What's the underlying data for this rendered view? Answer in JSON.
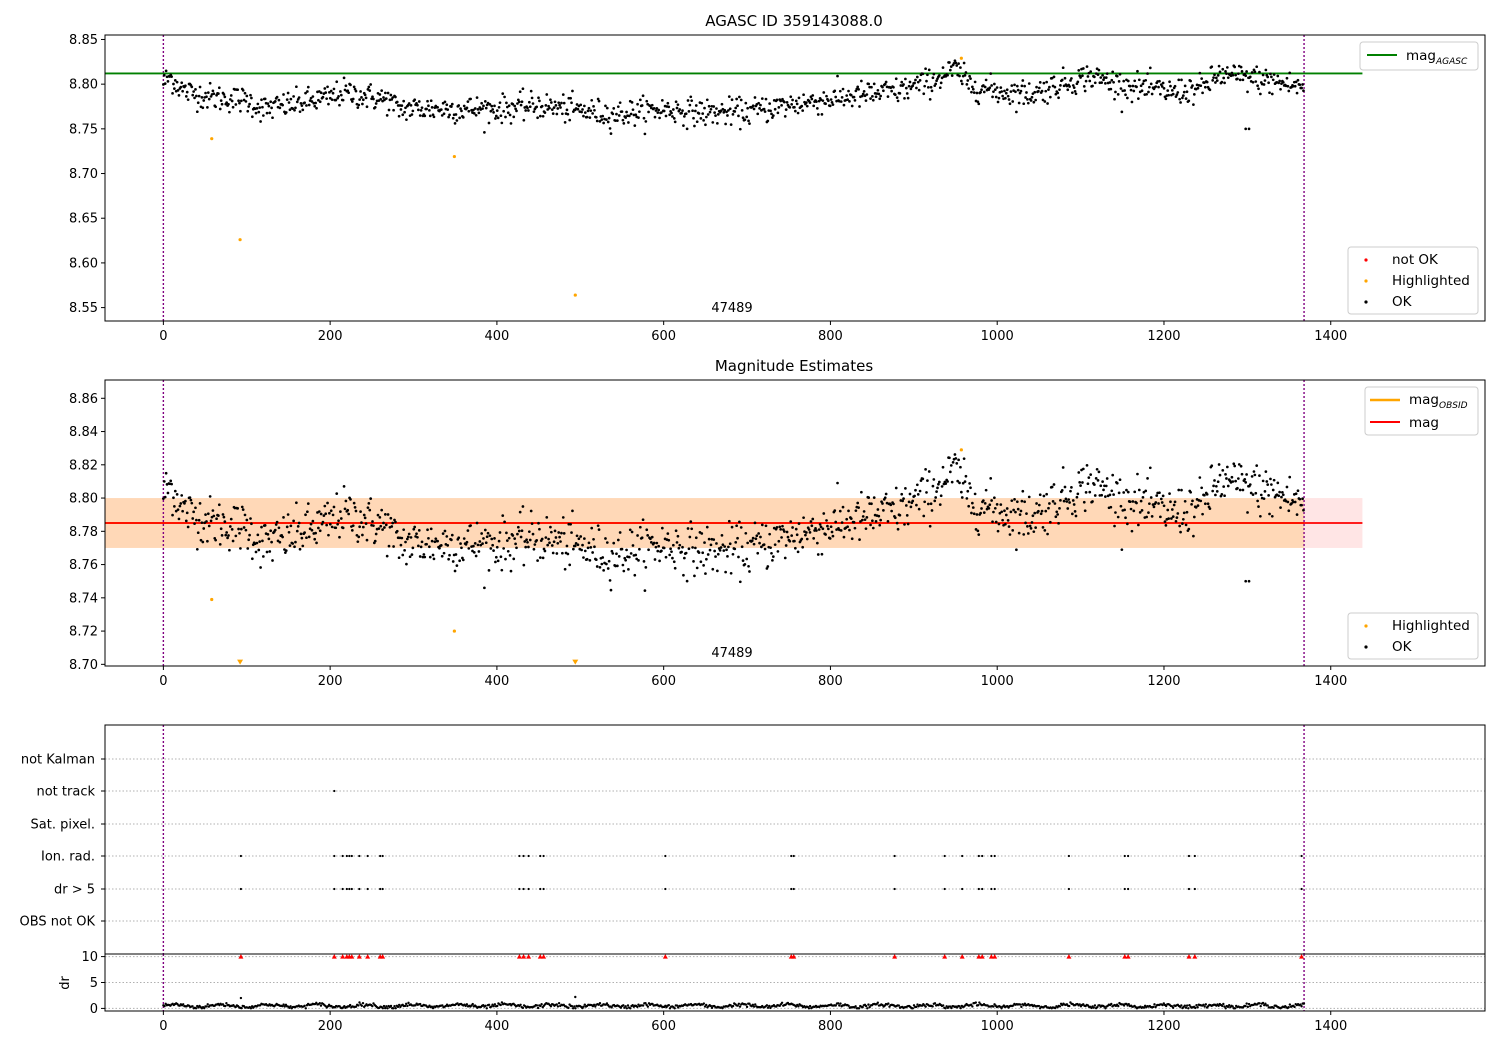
{
  "chart_data": [
    {
      "id": "agasc",
      "type": "scatter",
      "title": "AGASC ID 359143088.0",
      "xlim": [
        -70,
        1585
      ],
      "ylim": [
        8.535,
        8.855
      ],
      "xticks": [
        0,
        200,
        400,
        600,
        800,
        1000,
        1200,
        1400
      ],
      "yticks": [
        8.55,
        8.6,
        8.65,
        8.7,
        8.75,
        8.8,
        8.85
      ],
      "ytick_labels": [
        "8.55",
        "8.60",
        "8.65",
        "8.70",
        "8.75",
        "8.80",
        "8.85"
      ],
      "vlines": [
        0,
        1368
      ],
      "obsid_label": "47489",
      "mag_agasc": {
        "value": 8.812,
        "x_range": [
          -70,
          1438
        ]
      },
      "legend_top": [
        "mag_AGASC"
      ],
      "legend_bottom": [
        "not OK",
        "Highlighted",
        "OK"
      ],
      "highlighted": [
        {
          "x": 58,
          "y": 8.739
        },
        {
          "x": 92,
          "y": 8.626
        },
        {
          "x": 349,
          "y": 8.719
        },
        {
          "x": 494,
          "y": 8.564
        },
        {
          "x": 957,
          "y": 8.829
        }
      ],
      "ok_trend": [
        [
          0,
          8.802
        ],
        [
          8,
          8.808
        ],
        [
          25,
          8.792
        ],
        [
          60,
          8.785
        ],
        [
          100,
          8.782
        ],
        [
          120,
          8.772
        ],
        [
          200,
          8.785
        ],
        [
          215,
          8.791
        ],
        [
          270,
          8.782
        ],
        [
          280,
          8.773
        ],
        [
          400,
          8.772
        ],
        [
          450,
          8.776
        ],
        [
          540,
          8.766
        ],
        [
          600,
          8.772
        ],
        [
          650,
          8.768
        ],
        [
          700,
          8.769
        ],
        [
          760,
          8.778
        ],
        [
          820,
          8.786
        ],
        [
          880,
          8.792
        ],
        [
          920,
          8.803
        ],
        [
          950,
          8.817
        ],
        [
          965,
          8.8
        ],
        [
          1000,
          8.792
        ],
        [
          1040,
          8.789
        ],
        [
          1070,
          8.798
        ],
        [
          1110,
          8.809
        ],
        [
          1150,
          8.799
        ],
        [
          1210,
          8.791
        ],
        [
          1245,
          8.795
        ],
        [
          1265,
          8.81
        ],
        [
          1300,
          8.807
        ],
        [
          1368,
          8.797
        ]
      ],
      "ok_outliers": [
        {
          "x": 1298,
          "y": 8.75
        },
        {
          "x": 1302,
          "y": 8.75
        }
      ]
    },
    {
      "id": "estimates",
      "type": "scatter",
      "title": "Magnitude Estimates",
      "xlim": [
        -70,
        1585
      ],
      "ylim": [
        8.699,
        8.871
      ],
      "xticks": [
        0,
        200,
        400,
        600,
        800,
        1000,
        1200,
        1400
      ],
      "yticks": [
        8.7,
        8.72,
        8.74,
        8.76,
        8.78,
        8.8,
        8.82,
        8.84,
        8.86
      ],
      "ytick_labels": [
        "8.70",
        "8.72",
        "8.74",
        "8.76",
        "8.78",
        "8.80",
        "8.82",
        "8.84",
        "8.86"
      ],
      "vlines": [
        0,
        1368
      ],
      "obsid_label": "47489",
      "mag": {
        "value": 8.785,
        "band": [
          8.77,
          8.8
        ],
        "x_range": [
          -70,
          1438
        ]
      },
      "mag_obsid": {
        "value": 8.785,
        "band": [
          8.77,
          8.8
        ],
        "x_range": [
          -70,
          1368
        ]
      },
      "legend_top": [
        "mag_OBSID",
        "mag"
      ],
      "legend_bottom": [
        "Highlighted",
        "OK"
      ],
      "highlighted": [
        {
          "x": 58,
          "y": 8.739
        },
        {
          "x": 92,
          "y": 8.701
        },
        {
          "x": 349,
          "y": 8.72
        },
        {
          "x": 494,
          "y": 8.701
        },
        {
          "x": 957,
          "y": 8.829
        }
      ],
      "ok_outliers": [
        {
          "x": 1298,
          "y": 8.75
        },
        {
          "x": 1302,
          "y": 8.75
        }
      ]
    },
    {
      "id": "flags",
      "type": "scatter",
      "xlim": [
        -70,
        1585
      ],
      "xticks": [
        0,
        200,
        400,
        600,
        800,
        1000,
        1200,
        1400
      ],
      "vlines": [
        0,
        1368
      ],
      "flag_rows": [
        "not Kalman",
        "not track",
        "Sat. pixel.",
        "Ion. rad.",
        "dr > 5",
        "OBS not OK"
      ],
      "not_track_x": [
        205
      ],
      "flagged_x": [
        93,
        205,
        215,
        220,
        223,
        226,
        235,
        245,
        260,
        263,
        427,
        432,
        438,
        452,
        456,
        602,
        753,
        756,
        877,
        937,
        958,
        978,
        982,
        993,
        997,
        1086,
        1153,
        1157,
        1230,
        1237,
        1365
      ]
    },
    {
      "id": "dr",
      "type": "scatter",
      "ylabel": "dr",
      "xlim": [
        -70,
        1585
      ],
      "ylim": [
        -0.5,
        10.5
      ],
      "xticks": [
        0,
        200,
        400,
        600,
        800,
        1000,
        1200,
        1400
      ],
      "xtick_labels": [
        "0",
        "200",
        "400",
        "600",
        "800",
        "1000",
        "1200",
        "1400"
      ],
      "yticks": [
        0,
        5,
        10
      ],
      "ytick_labels": [
        "0",
        "5",
        "10"
      ],
      "vlines": [
        0,
        1368
      ],
      "clipped_marker_y": 10,
      "points_sample": [
        {
          "x": 93,
          "y": 2.0
        },
        {
          "x": 494,
          "y": 2.2
        }
      ],
      "dr_base": 0.5
    }
  ]
}
